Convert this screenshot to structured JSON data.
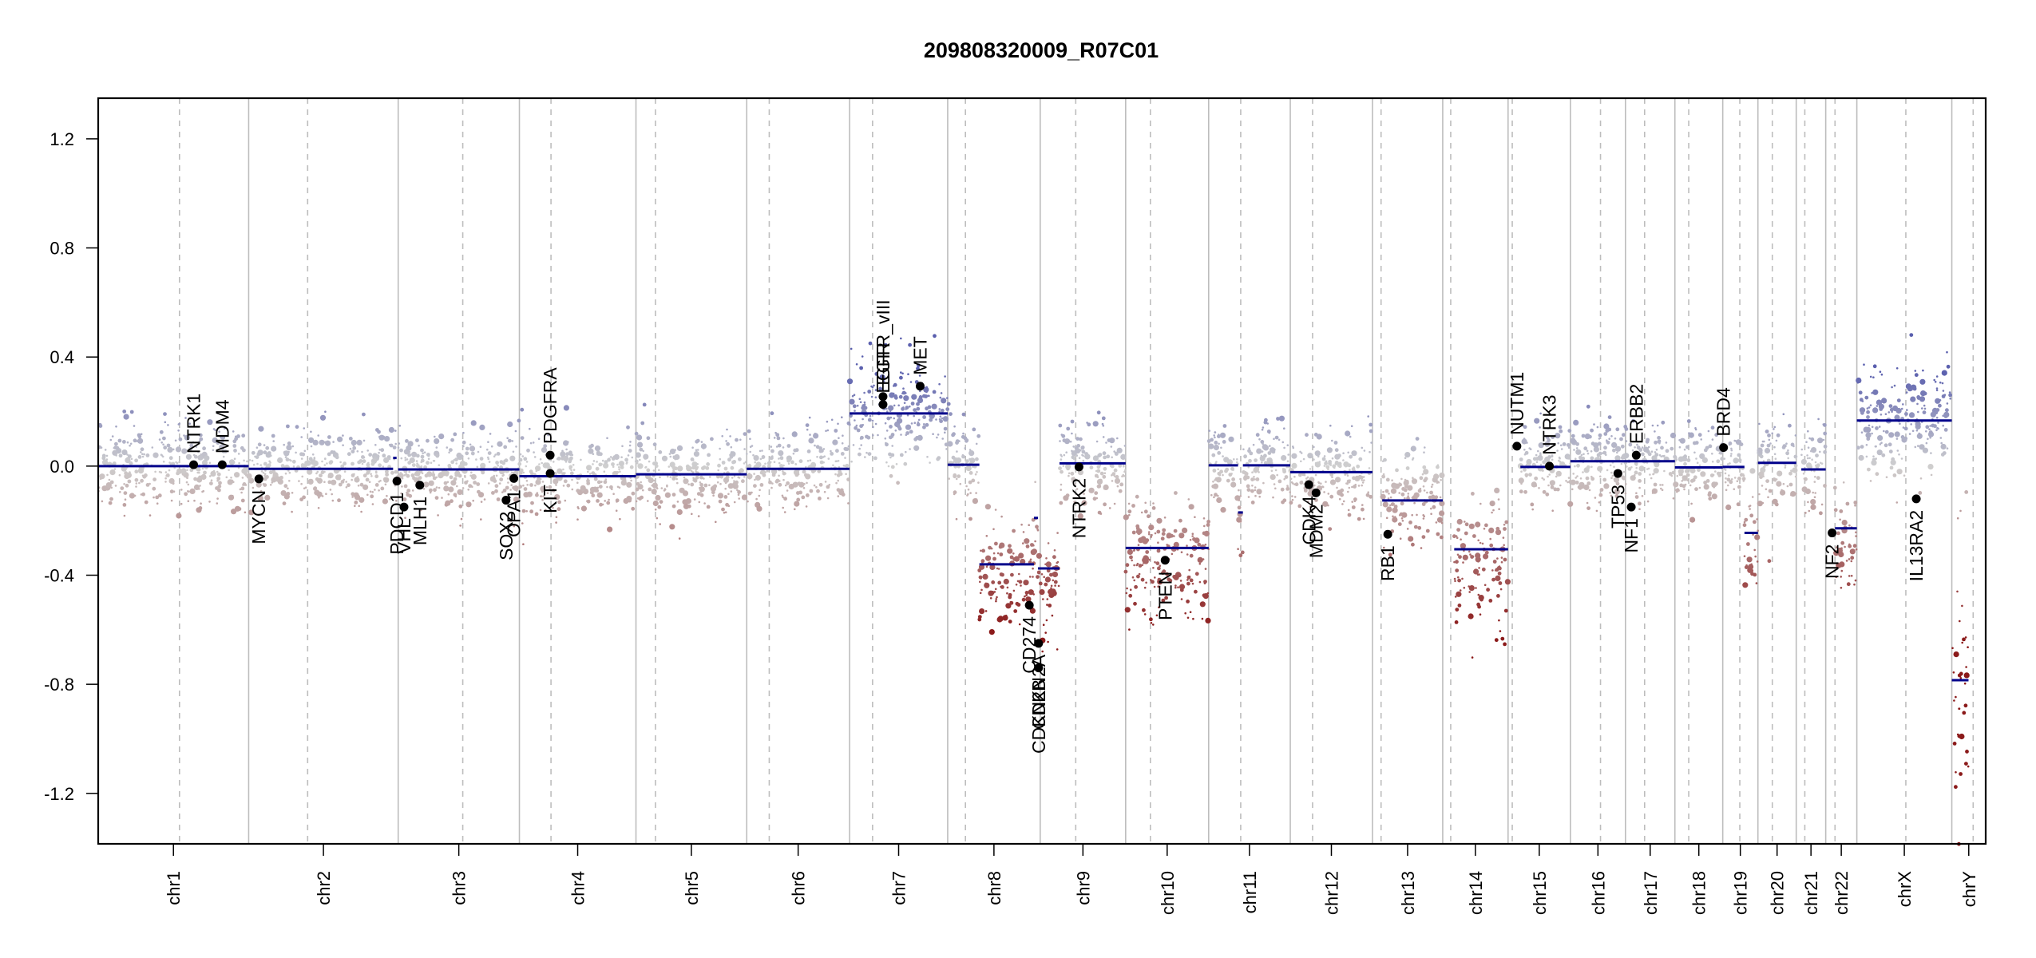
{
  "chart_data": {
    "type": "scatter",
    "title": "209808320009_R07C01",
    "xlabel": "",
    "ylabel": "",
    "ylim": [
      -1.385,
      1.349
    ],
    "yticks": [
      -1.2,
      -0.8,
      -0.4,
      0.0,
      0.4,
      0.8,
      1.2
    ],
    "ytick_labels": [
      "-1.2",
      "-0.8",
      "-0.4",
      "0.0",
      "0.4",
      "0.8",
      "1.2"
    ],
    "grid": false,
    "colors": {
      "gain": "#5a5fae",
      "neutral": "#cfcfcf",
      "loss": "#8b1a1a",
      "segment": "#00008b",
      "gene": "#000000",
      "boundary": "#bdbdbd",
      "centromere": "#bdbdbd"
    },
    "chromosomes": [
      {
        "name": "chr1",
        "start": 0.0,
        "end": 0.1296,
        "centromere": 0.07
      },
      {
        "name": "chr2",
        "start": 0.1296,
        "end": 0.2584,
        "centromere": 0.1804
      },
      {
        "name": "chr3",
        "start": 0.2584,
        "end": 0.3628,
        "centromere": 0.314
      },
      {
        "name": "chr4",
        "start": 0.3628,
        "end": 0.4632,
        "centromere": 0.39
      },
      {
        "name": "chr5",
        "start": 0.4632,
        "end": 0.5586,
        "centromere": 0.48
      },
      {
        "name": "chr6",
        "start": 0.5586,
        "end": 0.6472,
        "centromere": 0.578
      },
      {
        "name": "chr7",
        "start": 0.6472,
        "end": 0.7317,
        "centromere": 0.667
      },
      {
        "name": "chr8",
        "start": 0.7317,
        "end": 0.8114,
        "centromere": 0.747
      },
      {
        "name": "chr9",
        "start": 0.8114,
        "end": 0.885,
        "centromere": 0.842
      },
      {
        "name": "chr10",
        "start": 0.885,
        "end": 0.9565,
        "centromere": 0.9063
      },
      {
        "name": "chr11",
        "start": 0.9565,
        "end": 1.0268,
        "centromere": 0.9841
      },
      {
        "name": "chr12",
        "start": 1.0268,
        "end": 1.0976,
        "centromere": 1.046
      },
      {
        "name": "chr13",
        "start": 1.0976,
        "end": 1.1581,
        "centromere": 1.105
      },
      {
        "name": "chr14",
        "start": 1.1581,
        "end": 1.2144,
        "centromere": 1.165
      },
      {
        "name": "chr15",
        "start": 1.2144,
        "end": 1.2681,
        "centromere": 1.218
      },
      {
        "name": "chr16",
        "start": 1.2681,
        "end": 1.3155,
        "centromere": 1.294
      },
      {
        "name": "chr17",
        "start": 1.3155,
        "end": 1.3581,
        "centromere": 1.332
      },
      {
        "name": "chr18",
        "start": 1.3581,
        "end": 1.3993,
        "centromere": 1.37
      },
      {
        "name": "chr19",
        "start": 1.3993,
        "end": 1.4296,
        "centromere": 1.414
      },
      {
        "name": "chr20",
        "start": 1.4296,
        "end": 1.4626,
        "centromere": 1.442
      },
      {
        "name": "chr21",
        "start": 1.4626,
        "end": 1.488,
        "centromere": 1.47
      },
      {
        "name": "chr22",
        "start": 1.488,
        "end": 1.5148,
        "centromere": 1.496
      },
      {
        "name": "chrX",
        "start": 1.5148,
        "end": 1.5966,
        "centromere": 1.557
      },
      {
        "name": "chrY",
        "start": 1.5966,
        "end": 1.6258,
        "centromere": 1.615
      }
    ],
    "xlim": [
      0,
      1.6258
    ],
    "segments": [
      {
        "chr": "chr1",
        "start": 0.0,
        "end": 0.1296,
        "value": 0.0
      },
      {
        "chr": "chr2",
        "start": 0.1296,
        "end": 0.254,
        "value": -0.01
      },
      {
        "chr": "chr2",
        "start": 0.254,
        "end": 0.257,
        "value": 0.03
      },
      {
        "chr": "chr3",
        "start": 0.2584,
        "end": 0.3628,
        "value": -0.012
      },
      {
        "chr": "chr4",
        "start": 0.3628,
        "end": 0.4632,
        "value": -0.037
      },
      {
        "chr": "chr5",
        "start": 0.4632,
        "end": 0.5586,
        "value": -0.03
      },
      {
        "chr": "chr6",
        "start": 0.5586,
        "end": 0.6472,
        "value": -0.01
      },
      {
        "chr": "chr7",
        "start": 0.6472,
        "end": 0.7317,
        "value": 0.193
      },
      {
        "chr": "chr8",
        "start": 0.7317,
        "end": 0.759,
        "value": 0.005
      },
      {
        "chr": "chr8",
        "start": 0.759,
        "end": 0.806,
        "value": -0.36
      },
      {
        "chr": "chr8",
        "start": 0.806,
        "end": 0.8095,
        "value": -0.19
      },
      {
        "chr": "chr9",
        "start": 0.8095,
        "end": 0.828,
        "value": -0.375
      },
      {
        "chr": "chr9",
        "start": 0.828,
        "end": 0.885,
        "value": 0.01
      },
      {
        "chr": "chr10",
        "start": 0.885,
        "end": 0.9565,
        "value": -0.3
      },
      {
        "chr": "chr11",
        "start": 0.9565,
        "end": 0.9818,
        "value": 0.003
      },
      {
        "chr": "chr11",
        "start": 0.9818,
        "end": 0.986,
        "value": -0.17
      },
      {
        "chr": "chr11",
        "start": 0.986,
        "end": 1.0268,
        "value": 0.003
      },
      {
        "chr": "chr12",
        "start": 1.0268,
        "end": 1.0976,
        "value": -0.022
      },
      {
        "chr": "chr13",
        "start": 1.106,
        "end": 1.1581,
        "value": -0.126
      },
      {
        "chr": "chr14",
        "start": 1.168,
        "end": 1.2144,
        "value": -0.305
      },
      {
        "chr": "chr15",
        "start": 1.225,
        "end": 1.2681,
        "value": -0.003
      },
      {
        "chr": "chr16",
        "start": 1.2681,
        "end": 1.3581,
        "value": 0.018
      },
      {
        "chr": "chr18",
        "start": 1.3581,
        "end": 1.3993,
        "value": -0.005
      },
      {
        "chr": "chr19",
        "start": 1.3993,
        "end": 1.418,
        "value": -0.003
      },
      {
        "chr": "chr19",
        "start": 1.418,
        "end": 1.4296,
        "value": -0.245
      },
      {
        "chr": "chr20",
        "start": 1.4296,
        "end": 1.4626,
        "value": 0.012
      },
      {
        "chr": "chr21",
        "start": 1.467,
        "end": 1.488,
        "value": -0.012
      },
      {
        "chr": "chr22",
        "start": 1.496,
        "end": 1.5148,
        "value": -0.228
      },
      {
        "chr": "chrX",
        "start": 1.5148,
        "end": 1.5966,
        "value": 0.167
      },
      {
        "chr": "chrY",
        "start": 1.5966,
        "end": 1.611,
        "value": -0.785
      }
    ],
    "genes": [
      {
        "name": "NTRK1",
        "x": 0.0822,
        "value": 0.005,
        "label_side": "above"
      },
      {
        "name": "MDM4",
        "x": 0.1068,
        "value": 0.005,
        "label_side": "above"
      },
      {
        "name": "MYCN",
        "x": 0.1384,
        "value": -0.047,
        "label_side": "below"
      },
      {
        "name": "PDCD1",
        "x": 0.2573,
        "value": -0.055,
        "label_side": "below"
      },
      {
        "name": "VHL",
        "x": 0.2634,
        "value": -0.15,
        "label_side": "below"
      },
      {
        "name": "MLH1",
        "x": 0.277,
        "value": -0.07,
        "label_side": "below"
      },
      {
        "name": "SOX2",
        "x": 0.3513,
        "value": -0.125,
        "label_side": "below"
      },
      {
        "name": "OPA1",
        "x": 0.358,
        "value": -0.045,
        "label_side": "below"
      },
      {
        "name": "KIT",
        "x": 0.3893,
        "value": -0.027,
        "label_side": "below"
      },
      {
        "name": "PDGFRA",
        "x": 0.3893,
        "value": 0.04,
        "label_side": "above"
      },
      {
        "name": "EGFR",
        "x": 0.676,
        "value": 0.226,
        "label_side": "above"
      },
      {
        "name": "EGFR_vIII",
        "x": 0.676,
        "value": 0.255,
        "label_side": "above"
      },
      {
        "name": "MET",
        "x": 0.708,
        "value": 0.293,
        "label_side": "above"
      },
      {
        "name": "CD274",
        "x": 0.802,
        "value": -0.51,
        "label_side": "below"
      },
      {
        "name": "CDKN2A",
        "x": 0.81,
        "value": -0.65,
        "label_side": "below"
      },
      {
        "name": "CDKN2B",
        "x": 0.81,
        "value": -0.74,
        "label_side": "below"
      },
      {
        "name": "NTRK2",
        "x": 0.8448,
        "value": -0.003,
        "label_side": "below"
      },
      {
        "name": "PTEN",
        "x": 0.919,
        "value": -0.345,
        "label_side": "below"
      },
      {
        "name": "CDK4",
        "x": 1.0428,
        "value": -0.068,
        "label_side": "below"
      },
      {
        "name": "MDM2",
        "x": 1.049,
        "value": -0.098,
        "label_side": "below"
      },
      {
        "name": "RB1",
        "x": 1.1108,
        "value": -0.25,
        "label_side": "below"
      },
      {
        "name": "NUTM1",
        "x": 1.222,
        "value": 0.073,
        "label_side": "above"
      },
      {
        "name": "NTRK3",
        "x": 1.25,
        "value": 0.0,
        "label_side": "above"
      },
      {
        "name": "TP53",
        "x": 1.309,
        "value": -0.027,
        "label_side": "below"
      },
      {
        "name": "NF1",
        "x": 1.3205,
        "value": -0.15,
        "label_side": "below"
      },
      {
        "name": "ERBB2",
        "x": 1.3248,
        "value": 0.04,
        "label_side": "above"
      },
      {
        "name": "BRD4",
        "x": 1.4,
        "value": 0.068,
        "label_side": "above"
      },
      {
        "name": "NF2",
        "x": 1.4935,
        "value": -0.245,
        "label_side": "below"
      },
      {
        "name": "IL13RA2",
        "x": 1.566,
        "value": -0.12,
        "label_side": "below"
      }
    ]
  }
}
